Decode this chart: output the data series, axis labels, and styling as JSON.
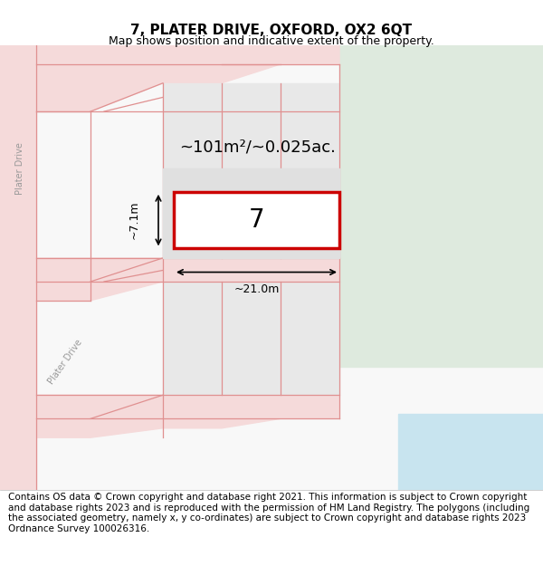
{
  "title": "7, PLATER DRIVE, OXFORD, OX2 6QT",
  "subtitle": "Map shows position and indicative extent of the property.",
  "area_label": "~101m²/~0.025ac.",
  "width_label": "~21.0m",
  "height_label": "~7.1m",
  "house_number": "7",
  "footer": "Contains OS data © Crown copyright and database right 2021. This information is subject to Crown copyright and database rights 2023 and is reproduced with the permission of HM Land Registry. The polygons (including the associated geometry, namely x, y co-ordinates) are subject to Crown copyright and database rights 2023 Ordnance Survey 100026316.",
  "bg_color": "#ffffff",
  "map_bg": "#f0f0f0",
  "green_area": "#deeade",
  "water_color": "#c8e4ef",
  "road_fill": "#f5dada",
  "road_stroke": "#e09090",
  "plot_fill": "#d8d8d8",
  "red_rect_color": "#cc0000",
  "title_fontsize": 11,
  "subtitle_fontsize": 9,
  "footer_fontsize": 7.5
}
